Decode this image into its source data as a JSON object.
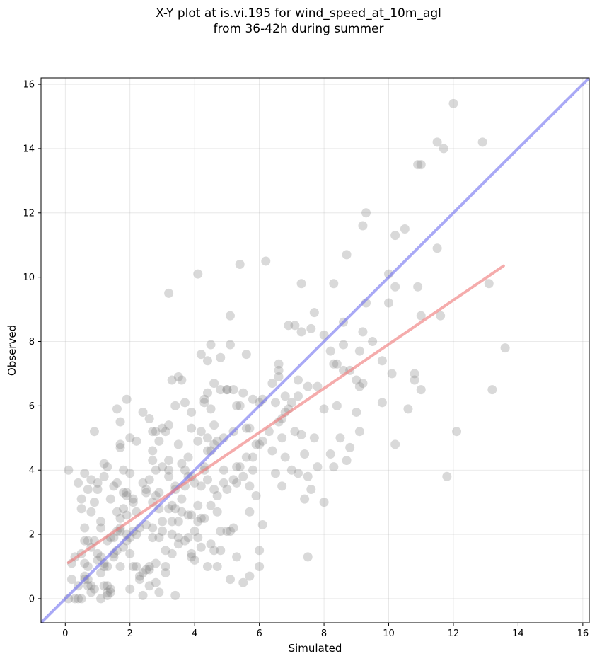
{
  "chart_data": {
    "type": "scatter",
    "title_line1": "X-Y plot at is.vi.195 for wind_speed_at_10m_agl",
    "title_line2": "from 36-42h during summer",
    "xlabel": "Simulated",
    "ylabel": "Observed",
    "xlim": [
      -0.75,
      16.2
    ],
    "ylim": [
      -0.75,
      16.2
    ],
    "xticks": [
      "0",
      "2",
      "4",
      "6",
      "8",
      "10",
      "12",
      "14",
      "16"
    ],
    "yticks": [
      "0",
      "2",
      "4",
      "6",
      "8",
      "10",
      "12",
      "14",
      "16"
    ],
    "grid": true,
    "colors": {
      "points": "#808080",
      "identity_line": "#6f6ff0",
      "fit_line": "#f08080"
    },
    "identity_line": {
      "x": [
        -0.75,
        16.2
      ],
      "y": [
        -0.75,
        16.2
      ]
    },
    "fit_line": {
      "x": [
        0.1,
        13.55
      ],
      "y": [
        1.12,
        10.35
      ]
    },
    "points": [
      [
        0.1,
        4.0
      ],
      [
        0.1,
        0.0
      ],
      [
        0.2,
        1.1
      ],
      [
        0.2,
        0.6
      ],
      [
        0.3,
        1.3
      ],
      [
        0.3,
        0.0
      ],
      [
        0.4,
        3.6
      ],
      [
        0.4,
        0.4
      ],
      [
        0.4,
        0.0
      ],
      [
        0.5,
        1.4
      ],
      [
        0.5,
        3.1
      ],
      [
        0.5,
        0.0
      ],
      [
        0.5,
        2.8
      ],
      [
        0.6,
        0.7
      ],
      [
        0.6,
        0.6
      ],
      [
        0.6,
        1.1
      ],
      [
        0.6,
        3.9
      ],
      [
        0.6,
        1.8
      ],
      [
        0.6,
        2.2
      ],
      [
        0.7,
        0.6
      ],
      [
        0.7,
        1.0
      ],
      [
        0.7,
        1.8
      ],
      [
        0.7,
        3.4
      ],
      [
        0.7,
        0.4
      ],
      [
        0.8,
        0.4
      ],
      [
        0.8,
        2.7
      ],
      [
        0.8,
        3.7
      ],
      [
        0.8,
        1.6
      ],
      [
        0.8,
        0.2
      ],
      [
        0.9,
        1.8
      ],
      [
        0.9,
        0.3
      ],
      [
        0.9,
        5.2
      ],
      [
        0.9,
        3.0
      ],
      [
        1.0,
        1.4
      ],
      [
        1.0,
        1.2
      ],
      [
        1.0,
        3.4
      ],
      [
        1.0,
        3.6
      ],
      [
        1.1,
        0.0
      ],
      [
        1.1,
        1.3
      ],
      [
        1.1,
        2.2
      ],
      [
        1.1,
        2.4
      ],
      [
        1.1,
        0.8
      ],
      [
        1.2,
        0.4
      ],
      [
        1.2,
        1.1
      ],
      [
        1.2,
        4.2
      ],
      [
        1.2,
        1.0
      ],
      [
        1.2,
        3.8
      ],
      [
        1.3,
        0.1
      ],
      [
        1.3,
        0.2
      ],
      [
        1.3,
        0.4
      ],
      [
        1.3,
        1.8
      ],
      [
        1.3,
        4.1
      ],
      [
        1.3,
        1.0
      ],
      [
        1.4,
        0.3
      ],
      [
        1.4,
        3.1
      ],
      [
        1.4,
        1.9
      ],
      [
        1.4,
        0.2
      ],
      [
        1.5,
        1.3
      ],
      [
        1.5,
        1.9
      ],
      [
        1.5,
        3.5
      ],
      [
        1.5,
        1.4
      ],
      [
        1.6,
        2.1
      ],
      [
        1.6,
        5.9
      ],
      [
        1.6,
        1.5
      ],
      [
        1.6,
        2.7
      ],
      [
        1.6,
        3.6
      ],
      [
        1.7,
        1.0
      ],
      [
        1.7,
        5.5
      ],
      [
        1.7,
        2.2
      ],
      [
        1.7,
        2.1
      ],
      [
        1.7,
        2.5
      ],
      [
        1.7,
        4.7
      ],
      [
        1.7,
        4.8
      ],
      [
        1.8,
        1.6
      ],
      [
        1.8,
        2.8
      ],
      [
        1.8,
        4.0
      ],
      [
        1.8,
        3.3
      ],
      [
        1.9,
        2.6
      ],
      [
        1.9,
        6.2
      ],
      [
        1.9,
        1.8
      ],
      [
        1.9,
        3.3
      ],
      [
        1.9,
        3.2
      ],
      [
        1.9,
        2.0
      ],
      [
        2.0,
        1.9
      ],
      [
        2.0,
        3.9
      ],
      [
        2.0,
        0.3
      ],
      [
        2.0,
        5.0
      ],
      [
        2.0,
        1.4
      ],
      [
        2.1,
        2.1
      ],
      [
        2.1,
        1.0
      ],
      [
        2.1,
        3.0
      ],
      [
        2.1,
        3.1
      ],
      [
        2.2,
        2.0
      ],
      [
        2.2,
        1.0
      ],
      [
        2.2,
        4.9
      ],
      [
        2.2,
        2.7
      ],
      [
        2.3,
        0.6
      ],
      [
        2.3,
        0.7
      ],
      [
        2.3,
        2.2
      ],
      [
        2.4,
        0.1
      ],
      [
        2.4,
        0.8
      ],
      [
        2.4,
        3.6
      ],
      [
        2.4,
        5.8
      ],
      [
        2.5,
        2.3
      ],
      [
        2.5,
        3.3
      ],
      [
        2.5,
        0.9
      ],
      [
        2.5,
        3.4
      ],
      [
        2.6,
        3.7
      ],
      [
        2.6,
        1.0
      ],
      [
        2.6,
        0.4
      ],
      [
        2.6,
        5.6
      ],
      [
        2.6,
        0.9
      ],
      [
        2.7,
        2.2
      ],
      [
        2.7,
        3.0
      ],
      [
        2.7,
        4.3
      ],
      [
        2.7,
        1.9
      ],
      [
        2.7,
        4.6
      ],
      [
        2.7,
        5.2
      ],
      [
        2.8,
        3.2
      ],
      [
        2.8,
        1.1
      ],
      [
        2.8,
        5.2
      ],
      [
        2.8,
        4.0
      ],
      [
        2.8,
        0.5
      ],
      [
        2.9,
        1.9
      ],
      [
        2.9,
        2.8
      ],
      [
        2.9,
        3.3
      ],
      [
        2.9,
        0.2
      ],
      [
        2.9,
        4.9
      ],
      [
        3.0,
        5.3
      ],
      [
        3.0,
        2.1
      ],
      [
        3.0,
        4.1
      ],
      [
        3.0,
        2.4
      ],
      [
        3.1,
        1.0
      ],
      [
        3.1,
        1.5
      ],
      [
        3.1,
        5.2
      ],
      [
        3.1,
        0.8
      ],
      [
        3.2,
        4.0
      ],
      [
        3.2,
        3.8
      ],
      [
        3.2,
        2.8
      ],
      [
        3.2,
        5.4
      ],
      [
        3.2,
        4.3
      ],
      [
        3.2,
        9.5
      ],
      [
        3.3,
        1.4
      ],
      [
        3.3,
        2.0
      ],
      [
        3.3,
        2.9
      ],
      [
        3.3,
        6.8
      ],
      [
        3.3,
        2.4
      ],
      [
        3.4,
        6.0
      ],
      [
        3.4,
        2.8
      ],
      [
        3.4,
        0.1
      ],
      [
        3.4,
        3.4
      ],
      [
        3.4,
        3.5
      ],
      [
        3.5,
        1.9
      ],
      [
        3.5,
        2.4
      ],
      [
        3.5,
        4.8
      ],
      [
        3.5,
        6.9
      ],
      [
        3.5,
        1.7
      ],
      [
        3.6,
        6.8
      ],
      [
        3.6,
        3.1
      ],
      [
        3.6,
        2.7
      ],
      [
        3.6,
        4.2
      ],
      [
        3.7,
        1.8
      ],
      [
        3.7,
        4.0
      ],
      [
        3.7,
        3.5
      ],
      [
        3.7,
        6.1
      ],
      [
        3.8,
        1.9
      ],
      [
        3.8,
        4.4
      ],
      [
        3.8,
        2.6
      ],
      [
        3.8,
        3.8
      ],
      [
        3.9,
        5.3
      ],
      [
        3.9,
        1.3
      ],
      [
        3.9,
        2.6
      ],
      [
        3.9,
        3.8
      ],
      [
        3.9,
        5.8
      ],
      [
        3.9,
        1.4
      ],
      [
        4.0,
        3.6
      ],
      [
        4.0,
        2.1
      ],
      [
        4.0,
        1.2
      ],
      [
        4.1,
        4.9
      ],
      [
        4.1,
        1.9
      ],
      [
        4.1,
        10.1
      ],
      [
        4.1,
        2.9
      ],
      [
        4.1,
        2.4
      ],
      [
        4.2,
        5.2
      ],
      [
        4.2,
        3.5
      ],
      [
        4.2,
        2.5
      ],
      [
        4.2,
        1.6
      ],
      [
        4.2,
        7.6
      ],
      [
        4.3,
        4.0
      ],
      [
        4.3,
        4.1
      ],
      [
        4.3,
        2.5
      ],
      [
        4.3,
        6.2
      ],
      [
        4.3,
        6.1
      ],
      [
        4.4,
        3.7
      ],
      [
        4.4,
        5.0
      ],
      [
        4.4,
        1.0
      ],
      [
        4.4,
        7.4
      ],
      [
        4.4,
        4.6
      ],
      [
        4.4,
        6.4
      ],
      [
        4.5,
        5.9
      ],
      [
        4.5,
        2.9
      ],
      [
        4.5,
        1.7
      ],
      [
        4.5,
        7.9
      ],
      [
        4.5,
        4.6
      ],
      [
        4.6,
        4.8
      ],
      [
        4.6,
        6.7
      ],
      [
        4.6,
        1.5
      ],
      [
        4.6,
        5.4
      ],
      [
        4.6,
        3.4
      ],
      [
        4.7,
        4.9
      ],
      [
        4.7,
        1.0
      ],
      [
        4.7,
        3.2
      ],
      [
        4.7,
        2.7
      ],
      [
        4.8,
        6.5
      ],
      [
        4.8,
        2.1
      ],
      [
        4.8,
        7.5
      ],
      [
        4.8,
        1.5
      ],
      [
        4.9,
        5.0
      ],
      [
        4.9,
        4.0
      ],
      [
        4.9,
        3.6
      ],
      [
        5.0,
        6.5
      ],
      [
        5.0,
        2.1
      ],
      [
        5.0,
        3.4
      ],
      [
        5.0,
        6.5
      ],
      [
        5.1,
        8.8
      ],
      [
        5.1,
        0.6
      ],
      [
        5.1,
        2.1
      ],
      [
        5.1,
        7.9
      ],
      [
        5.2,
        5.2
      ],
      [
        5.2,
        2.2
      ],
      [
        5.2,
        3.7
      ],
      [
        5.2,
        6.5
      ],
      [
        5.3,
        1.3
      ],
      [
        5.3,
        3.6
      ],
      [
        5.3,
        6.0
      ],
      [
        5.3,
        4.1
      ],
      [
        5.4,
        10.4
      ],
      [
        5.4,
        6.0
      ],
      [
        5.4,
        4.1
      ],
      [
        5.5,
        0.5
      ],
      [
        5.5,
        6.4
      ],
      [
        5.5,
        3.8
      ],
      [
        5.6,
        5.3
      ],
      [
        5.6,
        7.6
      ],
      [
        5.6,
        4.4
      ],
      [
        5.7,
        3.5
      ],
      [
        5.7,
        5.3
      ],
      [
        5.7,
        0.7
      ],
      [
        5.7,
        2.7
      ],
      [
        5.8,
        4.4
      ],
      [
        5.8,
        4.0
      ],
      [
        5.8,
        6.2
      ],
      [
        5.9,
        4.8
      ],
      [
        5.9,
        3.2
      ],
      [
        6.0,
        1.5
      ],
      [
        6.0,
        4.8
      ],
      [
        6.0,
        6.1
      ],
      [
        6.0,
        1.0
      ],
      [
        6.1,
        6.2
      ],
      [
        6.1,
        4.9
      ],
      [
        6.1,
        2.3
      ],
      [
        6.2,
        10.5
      ],
      [
        6.3,
        5.2
      ],
      [
        6.4,
        6.7
      ],
      [
        6.4,
        4.6
      ],
      [
        6.5,
        3.9
      ],
      [
        6.5,
        6.1
      ],
      [
        6.6,
        5.5
      ],
      [
        6.6,
        6.9
      ],
      [
        6.6,
        7.1
      ],
      [
        6.6,
        7.3
      ],
      [
        6.7,
        3.5
      ],
      [
        6.7,
        5.6
      ],
      [
        6.7,
        5.0
      ],
      [
        6.8,
        4.4
      ],
      [
        6.8,
        6.3
      ],
      [
        6.8,
        5.8
      ],
      [
        6.9,
        8.5
      ],
      [
        6.9,
        5.9
      ],
      [
        7.0,
        4.0
      ],
      [
        7.0,
        6.1
      ],
      [
        7.1,
        5.2
      ],
      [
        7.1,
        8.5
      ],
      [
        7.2,
        3.9
      ],
      [
        7.2,
        6.8
      ],
      [
        7.2,
        6.3
      ],
      [
        7.3,
        5.1
      ],
      [
        7.3,
        9.8
      ],
      [
        7.3,
        8.3
      ],
      [
        7.4,
        4.5
      ],
      [
        7.4,
        3.1
      ],
      [
        7.5,
        3.8
      ],
      [
        7.5,
        1.3
      ],
      [
        7.5,
        6.6
      ],
      [
        7.6,
        8.4
      ],
      [
        7.6,
        3.4
      ],
      [
        7.7,
        8.9
      ],
      [
        7.7,
        5.0
      ],
      [
        7.8,
        4.1
      ],
      [
        7.8,
        6.6
      ],
      [
        8.0,
        3.0
      ],
      [
        8.0,
        5.9
      ],
      [
        8.0,
        8.2
      ],
      [
        8.2,
        7.7
      ],
      [
        8.2,
        4.5
      ],
      [
        8.3,
        9.8
      ],
      [
        8.3,
        7.3
      ],
      [
        8.3,
        4.1
      ],
      [
        8.4,
        6.0
      ],
      [
        8.4,
        7.3
      ],
      [
        8.5,
        5.0
      ],
      [
        8.6,
        7.1
      ],
      [
        8.6,
        8.6
      ],
      [
        8.6,
        7.9
      ],
      [
        8.7,
        10.7
      ],
      [
        8.7,
        4.3
      ],
      [
        8.8,
        7.1
      ],
      [
        8.8,
        4.7
      ],
      [
        9.0,
        5.8
      ],
      [
        9.0,
        6.8
      ],
      [
        9.1,
        7.7
      ],
      [
        9.1,
        6.6
      ],
      [
        9.1,
        5.2
      ],
      [
        9.2,
        8.3
      ],
      [
        9.2,
        11.6
      ],
      [
        9.2,
        6.7
      ],
      [
        9.3,
        12.0
      ],
      [
        9.3,
        9.2
      ],
      [
        9.5,
        8.0
      ],
      [
        9.8,
        7.4
      ],
      [
        9.8,
        6.1
      ],
      [
        10.0,
        10.1
      ],
      [
        10.0,
        9.2
      ],
      [
        10.1,
        7.0
      ],
      [
        10.2,
        9.7
      ],
      [
        10.2,
        11.3
      ],
      [
        10.2,
        4.8
      ],
      [
        10.5,
        11.5
      ],
      [
        10.6,
        5.9
      ],
      [
        10.8,
        7.0
      ],
      [
        10.8,
        6.8
      ],
      [
        10.9,
        13.5
      ],
      [
        10.9,
        9.7
      ],
      [
        11.0,
        8.8
      ],
      [
        11.0,
        6.5
      ],
      [
        11.0,
        13.5
      ],
      [
        11.5,
        10.9
      ],
      [
        11.5,
        14.2
      ],
      [
        11.6,
        8.8
      ],
      [
        11.7,
        14.0
      ],
      [
        11.8,
        3.8
      ],
      [
        12.0,
        15.4
      ],
      [
        12.1,
        5.2
      ],
      [
        12.9,
        14.2
      ],
      [
        13.1,
        9.8
      ],
      [
        13.2,
        6.5
      ],
      [
        13.6,
        7.8
      ]
    ]
  }
}
